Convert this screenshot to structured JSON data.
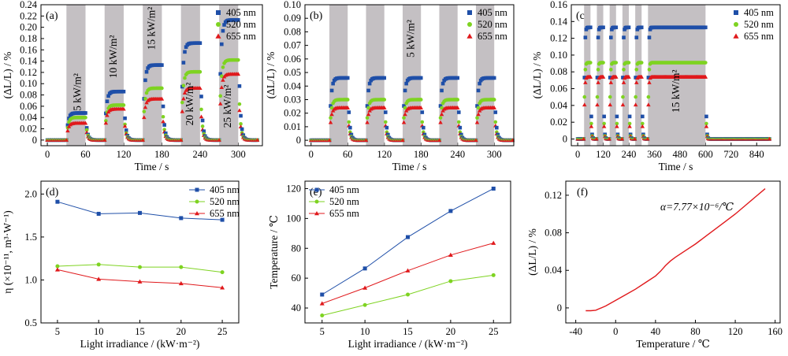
{
  "chart_data": [
    {
      "panel_label": "(a)",
      "type": "scatter",
      "xlabel": "Time / s",
      "ylabel": "(ΔL/L) / %",
      "xlim": [
        -10,
        338
      ],
      "ylim": [
        -0.01,
        0.24
      ],
      "xticks": [
        0,
        60,
        120,
        180,
        240,
        300
      ],
      "yticks": [
        0,
        0.02,
        0.04,
        0.06,
        0.08,
        0.1,
        0.12,
        0.14,
        0.16,
        0.18,
        0.2,
        0.22,
        0.24
      ],
      "ytick_labels": [
        "0",
        "0.02",
        "0.04",
        "0.06",
        "0.08",
        "0.10",
        "0.12",
        "0.14",
        "0.16",
        "0.18",
        "0.20",
        "0.22",
        "0.24"
      ],
      "legend_position": "top-right",
      "legend": [
        "405 nm",
        "520 nm",
        "655 nm"
      ],
      "on_intervals": [
        [
          30,
          60
        ],
        [
          90,
          120
        ],
        [
          150,
          180
        ],
        [
          210,
          240
        ],
        [
          270,
          300
        ]
      ],
      "segments": [
        [
          0,
          30
        ],
        [
          30,
          90
        ],
        [
          90,
          150
        ],
        [
          150,
          210
        ],
        [
          210,
          270
        ],
        [
          270,
          330
        ]
      ],
      "series": [
        {
          "name": "405 nm",
          "plateaus": [
            0.0,
            0.048,
            0.086,
            0.133,
            0.172,
            0.213
          ]
        },
        {
          "name": "520 nm",
          "plateaus": [
            0.0,
            0.04,
            0.062,
            0.092,
            0.121,
            0.142
          ]
        },
        {
          "name": "655 nm",
          "plateaus": [
            0.0,
            0.03,
            0.055,
            0.073,
            0.092,
            0.117
          ]
        }
      ],
      "annotations": [
        "5 kW/m²",
        "10 kW/m²",
        "15 kW/m²",
        "20 kW/m²",
        "25 kW/m²"
      ]
    },
    {
      "panel_label": "(b)",
      "type": "scatter",
      "xlabel": "Time / s",
      "ylabel": "(ΔL/L) / %",
      "xlim": [
        -10,
        332
      ],
      "ylim": [
        -0.004,
        0.1
      ],
      "xticks": [
        0,
        60,
        120,
        180,
        240,
        300
      ],
      "yticks": [
        0,
        0.01,
        0.02,
        0.03,
        0.04,
        0.05,
        0.06,
        0.07,
        0.08,
        0.09,
        0.1
      ],
      "ytick_labels": [
        "0",
        "0.01",
        "0.02",
        "0.03",
        "0.04",
        "0.05",
        "0.06",
        "0.07",
        "0.08",
        "0.09",
        "0.10"
      ],
      "legend_position": "top-right",
      "legend": [
        "405 nm",
        "520 nm",
        "655 nm"
      ],
      "on_intervals": [
        [
          30,
          60
        ],
        [
          90,
          120
        ],
        [
          150,
          180
        ],
        [
          210,
          240
        ],
        [
          270,
          300
        ]
      ],
      "segments": [
        [
          0,
          30
        ],
        [
          30,
          90
        ],
        [
          90,
          150
        ],
        [
          150,
          210
        ],
        [
          210,
          270
        ],
        [
          270,
          330
        ]
      ],
      "series": [
        {
          "name": "405 nm",
          "plateaus": [
            0.0,
            0.046,
            0.046,
            0.046,
            0.046,
            0.046
          ]
        },
        {
          "name": "520 nm",
          "plateaus": [
            0.0,
            0.03,
            0.03,
            0.03,
            0.03,
            0.03
          ]
        },
        {
          "name": "655 nm",
          "plateaus": [
            0.0,
            0.024,
            0.024,
            0.024,
            0.024,
            0.024
          ]
        }
      ],
      "annotations": [
        "5 kW/m²"
      ]
    },
    {
      "panel_label": "(c)",
      "type": "scatter",
      "xlabel": "Time / s",
      "ylabel": "(ΔL/L) / %",
      "xlim": [
        -30,
        950
      ],
      "ylim": [
        -0.008,
        0.16
      ],
      "xticks": [
        0,
        120,
        240,
        360,
        480,
        600,
        720,
        840
      ],
      "yticks": [
        0,
        0.02,
        0.04,
        0.06,
        0.08,
        0.1,
        0.12,
        0.14,
        0.16
      ],
      "ytick_labels": [
        "0",
        "0.02",
        "0.04",
        "0.06",
        "0.08",
        "0.10",
        "0.12",
        "0.14",
        "0.16"
      ],
      "legend_position": "top-right",
      "legend": [
        "405 nm",
        "520 nm",
        "655 nm"
      ],
      "on_intervals": [
        [
          30,
          60
        ],
        [
          90,
          120
        ],
        [
          150,
          180
        ],
        [
          210,
          240
        ],
        [
          270,
          300
        ],
        [
          330,
          600
        ]
      ],
      "segments": [
        [
          0,
          30
        ],
        [
          30,
          90
        ],
        [
          90,
          150
        ],
        [
          150,
          210
        ],
        [
          210,
          270
        ],
        [
          270,
          330
        ],
        [
          330,
          900
        ]
      ],
      "series": [
        {
          "name": "405 nm",
          "plateaus": [
            0.0,
            0.133,
            0.133,
            0.133,
            0.133,
            0.133,
            0.133
          ]
        },
        {
          "name": "520 nm",
          "plateaus": [
            0.0,
            0.091,
            0.091,
            0.091,
            0.091,
            0.091,
            0.091
          ]
        },
        {
          "name": "655 nm",
          "plateaus": [
            0.0,
            0.074,
            0.074,
            0.074,
            0.074,
            0.074,
            0.074
          ]
        }
      ],
      "annotations": [
        "15 kW/m²"
      ]
    },
    {
      "panel_label": "(d)",
      "type": "line",
      "xlabel": "Light irradiance / (kW·m⁻²)",
      "ylabel": "η (×10⁻¹¹, m³·W⁻¹)",
      "xlim": [
        3,
        27
      ],
      "ylim": [
        0.5,
        2.15
      ],
      "xticks": [
        5,
        10,
        15,
        20,
        25
      ],
      "yticks": [
        0.5,
        1.0,
        1.5,
        2.0
      ],
      "ytick_labels": [
        "0.5",
        "1.0",
        "1.5",
        "2.0"
      ],
      "legend_position": "top-right",
      "x": [
        5,
        10,
        15,
        20,
        25
      ],
      "series": [
        {
          "name": "405 nm",
          "values": [
            1.91,
            1.77,
            1.78,
            1.72,
            1.7
          ]
        },
        {
          "name": "520 nm",
          "values": [
            1.16,
            1.18,
            1.15,
            1.15,
            1.09
          ]
        },
        {
          "name": "655 nm",
          "values": [
            1.12,
            1.01,
            0.98,
            0.96,
            0.91
          ]
        }
      ]
    },
    {
      "panel_label": "(e)",
      "type": "line",
      "xlabel": "Light irradiance / (kW·m⁻²)",
      "ylabel": "Temperature / ℃",
      "xlim": [
        3,
        27
      ],
      "ylim": [
        30,
        125
      ],
      "xticks": [
        5,
        10,
        15,
        20,
        25
      ],
      "yticks": [
        40,
        60,
        80,
        100,
        120
      ],
      "ytick_labels": [
        "40",
        "60",
        "80",
        "100",
        "120"
      ],
      "legend_position": "top-left",
      "x": [
        5,
        10,
        15,
        20,
        25
      ],
      "series": [
        {
          "name": "405 nm",
          "values": [
            49,
            66.5,
            87.5,
            105,
            120
          ]
        },
        {
          "name": "520 nm",
          "values": [
            35,
            42,
            49,
            58,
            62
          ]
        },
        {
          "name": "655 nm",
          "values": [
            43,
            53.5,
            65,
            75.5,
            83.5
          ]
        }
      ]
    },
    {
      "panel_label": "(f)",
      "type": "line",
      "xlabel": "Temperature / ℃",
      "ylabel": "(ΔL/L) / %",
      "xlim": [
        -50,
        165
      ],
      "ylim": [
        -0.016,
        0.135
      ],
      "xticks": [
        -40,
        0,
        40,
        80,
        120,
        160
      ],
      "yticks": [
        0,
        0.04,
        0.08,
        0.12
      ],
      "ytick_labels": [
        "0",
        "0.04",
        "0.08",
        "0.12"
      ],
      "annotation": "α=7.77×10⁻⁶/℃",
      "series": [
        {
          "x": [
            -30,
            -25,
            -20,
            -10,
            0,
            10,
            20,
            30,
            40,
            45,
            50,
            55,
            60,
            70,
            80,
            90,
            100,
            110,
            120,
            130,
            140,
            150
          ],
          "values": [
            -0.003,
            -0.003,
            -0.0025,
            0.002,
            0.008,
            0.014,
            0.02,
            0.027,
            0.034,
            0.039,
            0.045,
            0.05,
            0.054,
            0.061,
            0.068,
            0.076,
            0.084,
            0.092,
            0.1,
            0.109,
            0.118,
            0.127
          ]
        }
      ]
    }
  ],
  "colors": {
    "405 nm": "#1f4fa8",
    "520 nm": "#7ed321",
    "655 nm": "#e0191c",
    "shade": "#c4c0c3",
    "f_line": "#e0191c"
  }
}
